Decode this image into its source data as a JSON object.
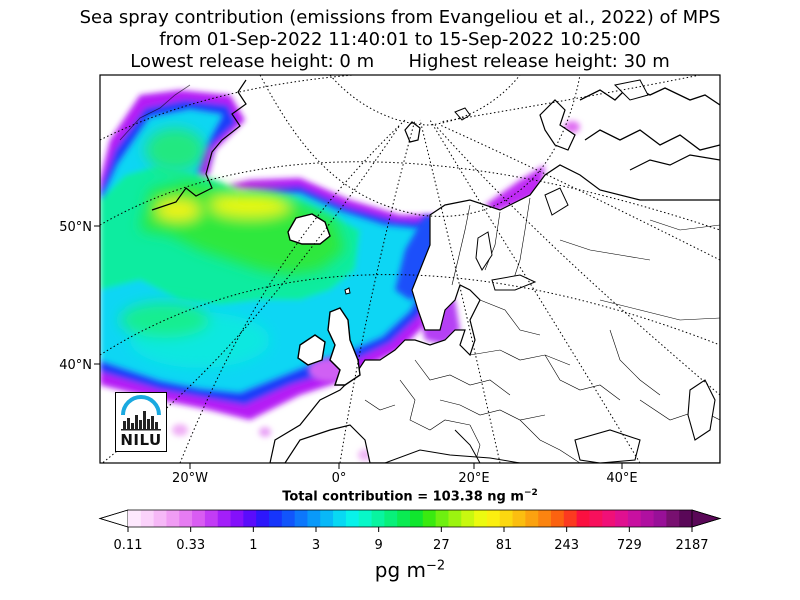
{
  "title": {
    "line1": "Sea spray contribution (emissions from Evangeliou et al., 2022) of MPS",
    "line2": "from 01-Sep-2022 11:40:01 to 15-Sep-2022 10:25:00",
    "line3": "Lowest release height: 0 m      Highest release height: 30 m"
  },
  "map": {
    "lat_labels": [
      "50°N",
      "40°N"
    ],
    "lon_labels": [
      "20°W",
      "0°",
      "20°E",
      "40°E"
    ],
    "logo_text": "NILU"
  },
  "total_contribution": {
    "prefix": "Total contribution = 103.38 ng m",
    "exponent": "−2"
  },
  "colorbar": {
    "tick_labels": [
      "0.11",
      "0.33",
      "1",
      "3",
      "9",
      "27",
      "81",
      "243",
      "729",
      "2187"
    ],
    "unit_base": "pg m",
    "unit_exponent": "−2",
    "colors": [
      "#fde8fd",
      "#fbd2fb",
      "#f6b8f7",
      "#f09cf4",
      "#e67cf2",
      "#d95cf2",
      "#c23cf5",
      "#a31ff9",
      "#8410fb",
      "#5a0cfb",
      "#2d17fb",
      "#1635fb",
      "#1155fb",
      "#0d77fb",
      "#0999fa",
      "#08b8f8",
      "#08d8f3",
      "#08f2ea",
      "#08f8c8",
      "#08f5a0",
      "#08f07a",
      "#0aeb52",
      "#10e62e",
      "#3aea10",
      "#6ef010",
      "#9cf410",
      "#c8f810",
      "#ecfa10",
      "#fbef10",
      "#fbd810",
      "#fbbe10",
      "#fba210",
      "#fb8410",
      "#fb6210",
      "#fb3a20",
      "#fb1040",
      "#f8105c",
      "#f01078",
      "#e01090",
      "#c810a0",
      "#b010a0",
      "#981098",
      "#781070",
      "#5a0858"
    ]
  }
}
